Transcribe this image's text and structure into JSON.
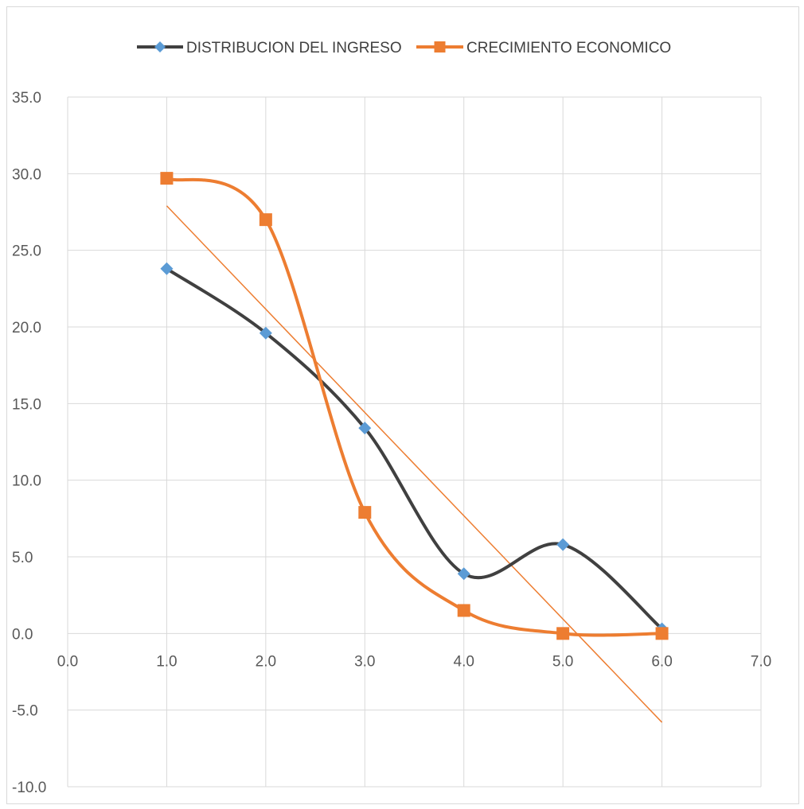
{
  "chart_data": {
    "type": "scatter",
    "title": "",
    "xlabel": "",
    "ylabel": "",
    "xlim": [
      0,
      7
    ],
    "ylim": [
      -10,
      35
    ],
    "x_ticks": [
      "0.0",
      "1.0",
      "2.0",
      "3.0",
      "4.0",
      "5.0",
      "6.0",
      "7.0"
    ],
    "y_ticks": [
      "35.0",
      "30.0",
      "25.0",
      "20.0",
      "15.0",
      "10.0",
      "5.0",
      "0.0",
      "-5.0",
      "-10.0"
    ],
    "grid": true,
    "legend_position": "top",
    "series": [
      {
        "name": "DISTRIBUCION DEL INGRESO",
        "color": "#404040",
        "marker": "diamond",
        "marker_color": "#5b9bd5",
        "smooth": true,
        "x": [
          1,
          2,
          3,
          4,
          5,
          6
        ],
        "y": [
          23.8,
          19.6,
          13.4,
          3.9,
          5.8,
          0.3
        ]
      },
      {
        "name": "CRECIMIENTO ECONOMICO",
        "color": "#ed7d31",
        "marker": "square",
        "marker_color": "#ed7d31",
        "smooth": true,
        "x": [
          1,
          2,
          3,
          4,
          5,
          6
        ],
        "y": [
          29.7,
          27.0,
          7.9,
          1.5,
          0.0,
          0.0
        ]
      }
    ],
    "trendline": {
      "series": "CRECIMIENTO ECONOMICO",
      "color": "#ed7d31",
      "x": [
        1,
        6
      ],
      "y": [
        27.9,
        -5.8
      ]
    }
  }
}
